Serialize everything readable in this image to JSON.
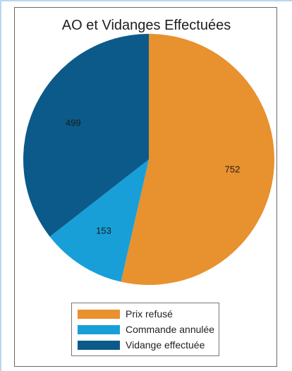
{
  "chart_data": {
    "type": "pie",
    "title": "AO et Vidanges Effectuées",
    "slices": [
      {
        "name": "Prix refusé",
        "value": 752,
        "color": "#e8912f"
      },
      {
        "name": "Commande annulée",
        "value": 153,
        "color": "#189fd8"
      },
      {
        "name": "Vidange effectuée",
        "value": 499,
        "color": "#0b5a8a"
      }
    ],
    "legend_position": "bottom",
    "start_angle": "top, clockwise"
  }
}
